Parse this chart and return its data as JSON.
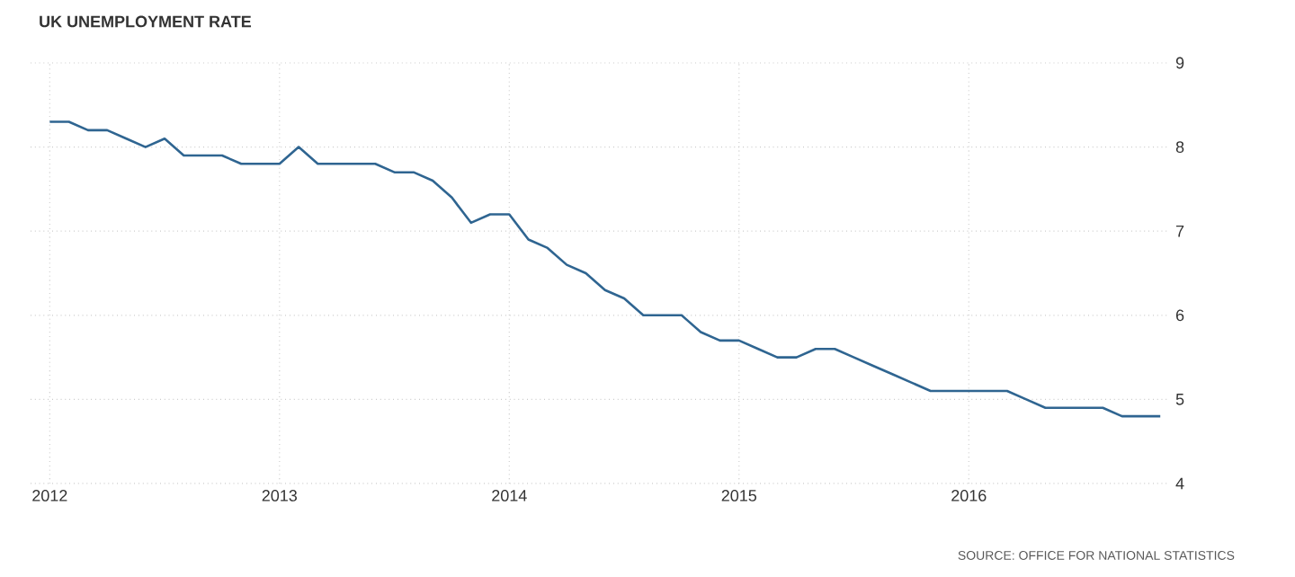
{
  "chart_data": {
    "type": "line",
    "title": "UK UNEMPLOYMENT RATE",
    "annotations": [
      "SOURCE: OFFICE FOR NATIONAL STATISTICS"
    ],
    "x": [
      "2012-01",
      "2012-02",
      "2012-03",
      "2012-04",
      "2012-05",
      "2012-06",
      "2012-07",
      "2012-08",
      "2012-09",
      "2012-10",
      "2012-11",
      "2012-12",
      "2013-01",
      "2013-02",
      "2013-03",
      "2013-04",
      "2013-05",
      "2013-06",
      "2013-07",
      "2013-08",
      "2013-09",
      "2013-10",
      "2013-11",
      "2013-12",
      "2014-01",
      "2014-02",
      "2014-03",
      "2014-04",
      "2014-05",
      "2014-06",
      "2014-07",
      "2014-08",
      "2014-09",
      "2014-10",
      "2014-11",
      "2014-12",
      "2015-01",
      "2015-02",
      "2015-03",
      "2015-04",
      "2015-05",
      "2015-06",
      "2015-07",
      "2015-08",
      "2015-09",
      "2015-10",
      "2015-11",
      "2015-12",
      "2016-01",
      "2016-02",
      "2016-03",
      "2016-04",
      "2016-05",
      "2016-06",
      "2016-07",
      "2016-08",
      "2016-09",
      "2016-10",
      "2016-11"
    ],
    "series": [
      {
        "color": "#2f6591",
        "values": [
          8.3,
          8.3,
          8.2,
          8.2,
          8.1,
          8.0,
          8.1,
          7.9,
          7.9,
          7.9,
          7.8,
          7.8,
          7.8,
          8.0,
          7.8,
          7.8,
          7.8,
          7.8,
          7.7,
          7.7,
          7.6,
          7.4,
          7.1,
          7.2,
          7.2,
          6.9,
          6.8,
          6.6,
          6.5,
          6.3,
          6.2,
          6.0,
          6.0,
          6.0,
          5.8,
          5.7,
          5.7,
          5.6,
          5.5,
          5.5,
          5.6,
          5.6,
          5.5,
          5.4,
          5.3,
          5.2,
          5.1,
          5.1,
          5.1,
          5.1,
          5.1,
          5.0,
          4.9,
          4.9,
          4.9,
          4.9,
          4.8,
          4.8,
          4.8
        ]
      }
    ],
    "xlim": [
      "2011-12-01",
      "2016-11-15"
    ],
    "xticks": [
      "2012",
      "2013",
      "2014",
      "2015",
      "2016"
    ],
    "ylim": [
      4,
      9
    ],
    "yticks": [
      4,
      5,
      6,
      7,
      8,
      9
    ],
    "grid": true,
    "marker": "none",
    "line_style": "solid"
  }
}
